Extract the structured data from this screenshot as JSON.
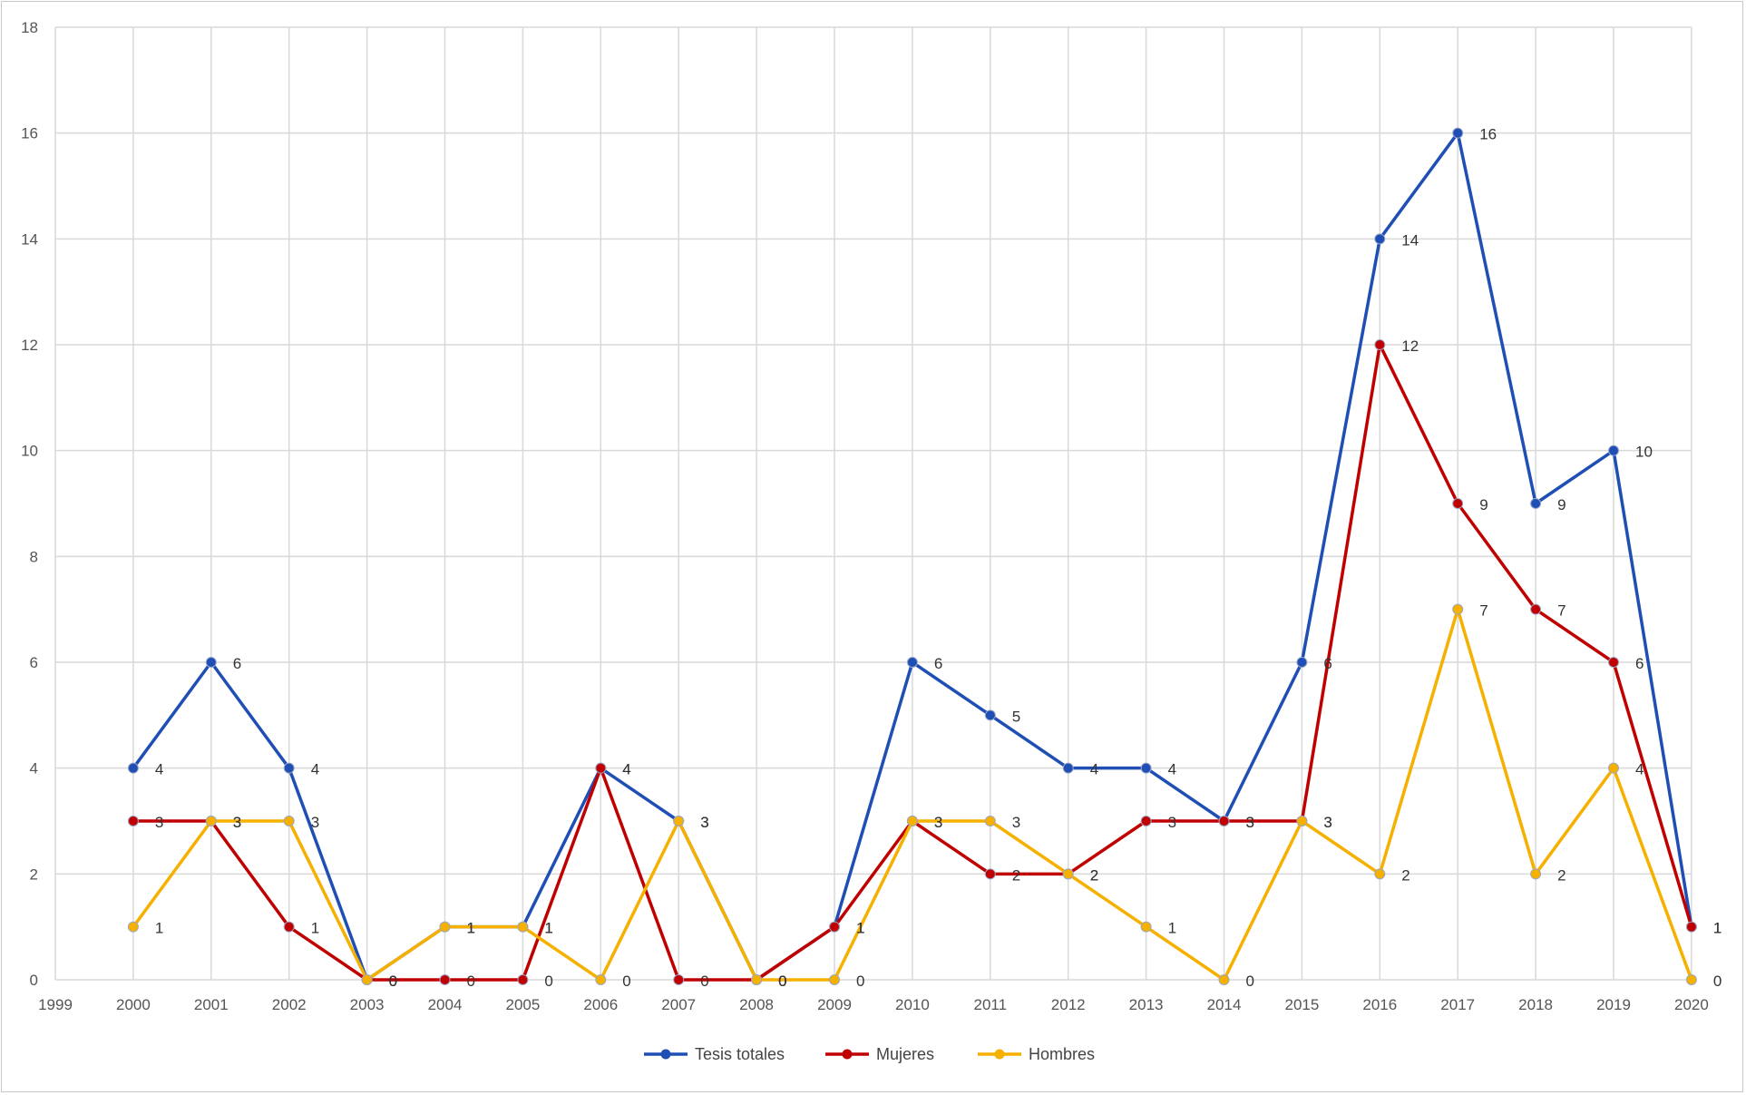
{
  "chart_data": {
    "type": "line",
    "title": "",
    "xlabel": "",
    "ylabel": "",
    "x_ticks": [
      "1999",
      "2000",
      "2001",
      "2002",
      "2003",
      "2004",
      "2005",
      "2006",
      "2007",
      "2008",
      "2009",
      "2010",
      "2011",
      "2012",
      "2013",
      "2014",
      "2015",
      "2016",
      "2017",
      "2018",
      "2019",
      "2020"
    ],
    "y_ticks": [
      "0",
      "2",
      "4",
      "6",
      "8",
      "10",
      "12",
      "14",
      "16",
      "18"
    ],
    "ylim": [
      0,
      18
    ],
    "grid": true,
    "legend_position": "bottom",
    "x": [
      "2000",
      "2001",
      "2002",
      "2003",
      "2004",
      "2005",
      "2006",
      "2007",
      "2008",
      "2009",
      "2010",
      "2011",
      "2012",
      "2013",
      "2014",
      "2015",
      "2016",
      "2017",
      "2018",
      "2019",
      "2020"
    ],
    "series": [
      {
        "name": "Tesis totales",
        "color": "#1f4fb4",
        "values": [
          4,
          6,
          4,
          0,
          1,
          1,
          4,
          3,
          0,
          1,
          6,
          5,
          4,
          4,
          3,
          6,
          14,
          16,
          9,
          10,
          1
        ]
      },
      {
        "name": "Mujeres",
        "color": "#c00000",
        "values": [
          3,
          3,
          1,
          0,
          0,
          0,
          4,
          0,
          0,
          1,
          3,
          2,
          2,
          3,
          3,
          3,
          12,
          9,
          7,
          6,
          1
        ]
      },
      {
        "name": "Hombres",
        "color": "#f5b000",
        "values": [
          1,
          3,
          3,
          0,
          1,
          1,
          0,
          3,
          0,
          0,
          3,
          3,
          2,
          1,
          0,
          3,
          2,
          7,
          2,
          4,
          0
        ]
      }
    ],
    "data_labels": {
      "Tesis totales": [
        "4",
        "6",
        "4",
        "0",
        "1",
        "1",
        "4",
        "3",
        "0",
        "1",
        "6",
        "5",
        "4",
        "4",
        "3",
        "6",
        "14",
        "16",
        "9",
        "10",
        "1"
      ],
      "Mujeres": [
        "3",
        "3",
        "1",
        "0",
        "0",
        "0",
        "4",
        "0",
        "0",
        "1",
        "3",
        "2",
        "2",
        "3",
        "3",
        "3",
        "12",
        "9",
        "7",
        "6",
        "1"
      ],
      "Hombres": [
        "1",
        "3",
        "3",
        "0",
        "1",
        "1",
        "0",
        "3",
        "0",
        "0",
        "3",
        "3",
        "2",
        "1",
        "0",
        "3",
        "2",
        "7",
        "2",
        "4",
        "0"
      ]
    }
  }
}
